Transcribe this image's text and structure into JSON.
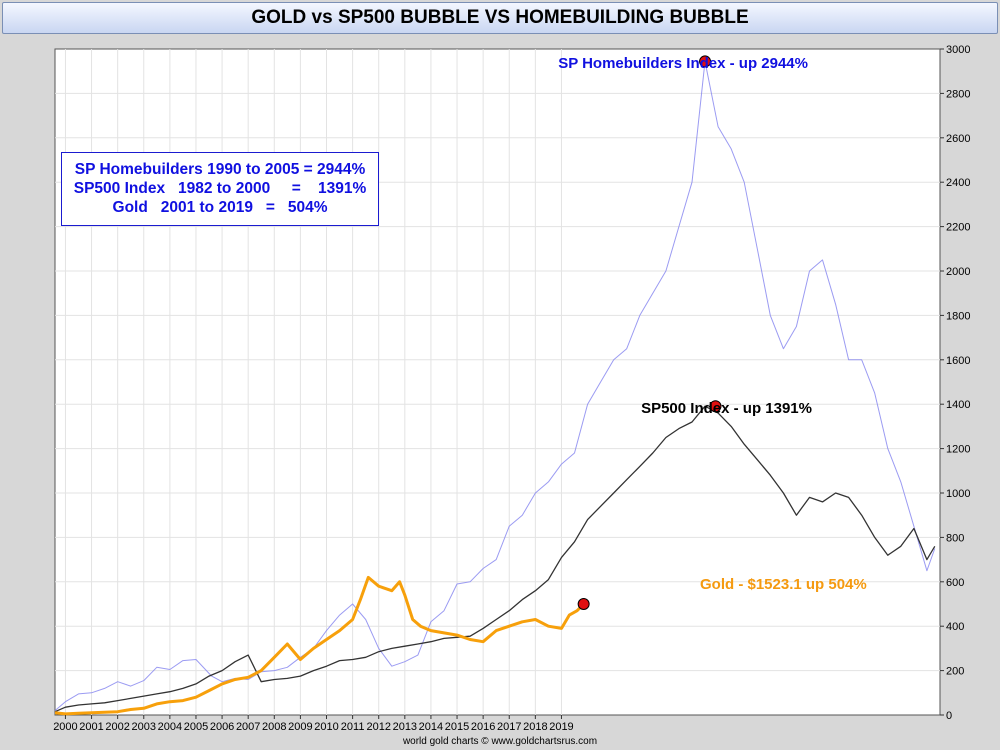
{
  "title": "GOLD vs SP500 BUBBLE VS HOMEBUILDING BUBBLE",
  "credit": "world gold charts © www.goldchartsrus.com",
  "info_box": {
    "lines": [
      "SP Homebuilders 1990 to 2005 = 2944%",
      "SP500 Index   1982 to 2000     =    1391%",
      "Gold   2001 to 2019   =   504%"
    ]
  },
  "annotations": {
    "homebuilders": "SP Homebuilders Index - up 2944%",
    "sp500": "SP500 Index - up 1391%",
    "gold": "Gold - $1523.1 up 504%"
  },
  "colors": {
    "homebuilders": "#8a8af0",
    "sp500": "#333333",
    "gold": "#f7a00b",
    "marker": "#e01010",
    "annotation_blue": "#1010e0",
    "annotation_black": "#000000",
    "annotation_gold": "#f59a10",
    "grid": "#e3e3e3"
  },
  "chart_data": {
    "type": "line",
    "title": "GOLD vs SP500 BUBBLE VS HOMEBUILDING BUBBLE",
    "xlabel": "",
    "ylabel": "",
    "x_range": [
      1999.6,
      2033.5
    ],
    "ylim": [
      0,
      3000
    ],
    "y_ticks": [
      0,
      200,
      400,
      600,
      800,
      1000,
      1200,
      1400,
      1600,
      1800,
      2000,
      2200,
      2400,
      2600,
      2800,
      3000
    ],
    "x_ticks": [
      2000,
      2001,
      2002,
      2003,
      2004,
      2005,
      2006,
      2007,
      2008,
      2009,
      2010,
      2011,
      2012,
      2013,
      2014,
      2015,
      2016,
      2017,
      2018,
      2019
    ],
    "grid": true,
    "y_axis_position": "right",
    "series": [
      {
        "key": "homebuilders",
        "x": [
          1999.6,
          2000.0,
          2000.5,
          2001.0,
          2001.5,
          2002.0,
          2002.5,
          2003.0,
          2003.5,
          2004.0,
          2004.5,
          2005.0,
          2005.6,
          2006.0,
          2006.5,
          2007.0,
          2007.5,
          2008.0,
          2008.5,
          2009.0,
          2009.5,
          2010.0,
          2010.5,
          2011.0,
          2011.5,
          2012.0,
          2012.5,
          2013.0,
          2013.5,
          2014.0,
          2014.5,
          2015.0,
          2015.5,
          2016.0,
          2016.5,
          2017.0,
          2017.5,
          2018.0,
          2018.5,
          2019.0,
          2019.5,
          2020.0,
          2020.5,
          2021.0,
          2021.5,
          2022.0,
          2022.5,
          2023.0,
          2023.5,
          2024.0,
          2024.5,
          2025.0,
          2025.5,
          2026.0,
          2026.5,
          2027.0,
          2027.5,
          2028.0,
          2028.5,
          2029.0,
          2029.5,
          2030.0,
          2030.5,
          2031.0,
          2031.5,
          2032.0,
          2032.5,
          2033.0,
          2033.3
        ],
        "y": [
          20,
          60,
          95,
          100,
          120,
          150,
          130,
          155,
          215,
          205,
          245,
          250,
          175,
          150,
          165,
          160,
          195,
          200,
          215,
          260,
          300,
          380,
          450,
          500,
          430,
          300,
          220,
          240,
          270,
          420,
          470,
          590,
          600,
          660,
          700,
          850,
          900,
          1000,
          1050,
          1130,
          1180,
          1400,
          1500,
          1600,
          1650,
          1800,
          1900,
          2000,
          2200,
          2400,
          2944,
          2650,
          2550,
          2400,
          2100,
          1800,
          1650,
          1750,
          2000,
          2050,
          1850,
          1600,
          1600,
          1450,
          1200,
          1050,
          850,
          650,
          750
        ]
      },
      {
        "key": "sp500",
        "x": [
          1999.6,
          2000.0,
          2000.5,
          2001.0,
          2001.5,
          2002.0,
          2002.5,
          2003.0,
          2003.5,
          2004.0,
          2004.5,
          2005.0,
          2005.5,
          2006.0,
          2006.5,
          2007.0,
          2007.5,
          2008.0,
          2008.5,
          2009.0,
          2009.5,
          2010.0,
          2010.5,
          2011.0,
          2011.5,
          2012.0,
          2012.5,
          2013.0,
          2013.5,
          2014.0,
          2014.5,
          2015.0,
          2015.5,
          2016.0,
          2016.5,
          2017.0,
          2017.5,
          2018.0,
          2018.5,
          2019.0,
          2019.5,
          2020.0,
          2020.5,
          2021.0,
          2021.5,
          2022.0,
          2022.5,
          2023.0,
          2023.5,
          2024.0,
          2024.5,
          2025.0,
          2025.5,
          2026.0,
          2026.5,
          2027.0,
          2027.5,
          2028.0,
          2028.5,
          2029.0,
          2029.5,
          2030.0,
          2030.5,
          2031.0,
          2031.5,
          2032.0,
          2032.5,
          2033.0,
          2033.3
        ],
        "y": [
          15,
          35,
          45,
          50,
          55,
          65,
          75,
          85,
          95,
          105,
          120,
          140,
          175,
          200,
          240,
          270,
          150,
          160,
          165,
          175,
          200,
          220,
          245,
          250,
          260,
          285,
          300,
          310,
          320,
          330,
          345,
          350,
          355,
          390,
          430,
          470,
          520,
          560,
          610,
          710,
          780,
          880,
          940,
          1000,
          1060,
          1120,
          1180,
          1250,
          1290,
          1320,
          1391,
          1360,
          1300,
          1220,
          1150,
          1080,
          1000,
          900,
          980,
          960,
          1000,
          980,
          900,
          800,
          720,
          760,
          840,
          700,
          760
        ]
      },
      {
        "key": "gold",
        "x": [
          1999.6,
          2000.0,
          2000.5,
          2001.0,
          2001.5,
          2002.0,
          2002.5,
          2003.0,
          2003.5,
          2004.0,
          2004.5,
          2005.0,
          2005.5,
          2006.0,
          2006.5,
          2007.0,
          2007.5,
          2008.0,
          2008.5,
          2009.0,
          2009.5,
          2010.0,
          2010.5,
          2011.0,
          2011.3,
          2011.6,
          2012.0,
          2012.5,
          2012.8,
          2013.0,
          2013.3,
          2013.6,
          2014.0,
          2014.5,
          2015.0,
          2015.5,
          2016.0,
          2016.5,
          2017.0,
          2017.5,
          2018.0,
          2018.5,
          2019.0,
          2019.3,
          2019.6,
          2019.85
        ],
        "y": [
          10,
          5,
          8,
          10,
          12,
          15,
          25,
          30,
          50,
          60,
          65,
          80,
          110,
          140,
          160,
          170,
          200,
          260,
          320,
          250,
          300,
          340,
          380,
          430,
          520,
          620,
          580,
          560,
          600,
          540,
          430,
          400,
          380,
          370,
          360,
          340,
          330,
          380,
          400,
          420,
          430,
          400,
          390,
          450,
          470,
          500
        ]
      }
    ],
    "markers": [
      {
        "series": "homebuilders",
        "x": 2024.5,
        "y": 2944
      },
      {
        "series": "sp500",
        "x": 2024.9,
        "y": 1391
      },
      {
        "series": "gold",
        "x": 2019.85,
        "y": 500
      }
    ]
  }
}
